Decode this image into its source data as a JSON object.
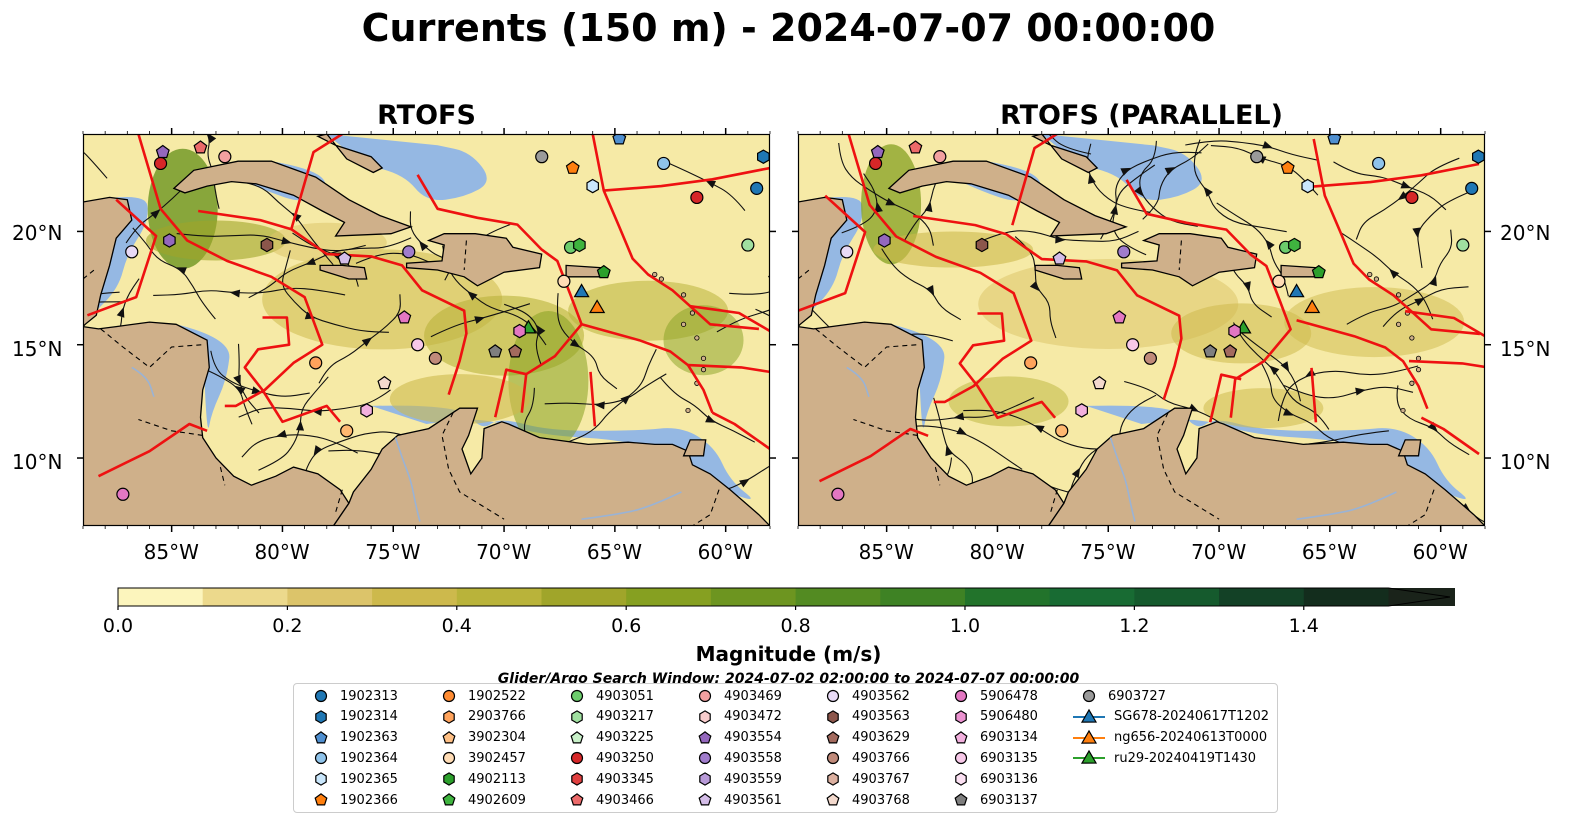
{
  "title": "Currents (150 m) - 2024-07-07 00:00:00",
  "panels": [
    {
      "title": "RTOFS"
    },
    {
      "title": "RTOFS (PARALLEL)"
    }
  ],
  "axes": {
    "lon_labels": [
      "85°W",
      "80°W",
      "75°W",
      "70°W",
      "65°W",
      "60°W"
    ],
    "lon_values": [
      -85,
      -80,
      -75,
      -70,
      -65,
      -60
    ],
    "lat_labels": [
      "20°N",
      "15°N",
      "10°N"
    ],
    "lat_values": [
      20,
      15,
      10
    ],
    "lon_range": [
      -89,
      -58
    ],
    "lat_range": [
      7,
      24.3
    ]
  },
  "colorbar": {
    "label": "Magnitude (m/s)",
    "ticks": [
      "0.0",
      "0.2",
      "0.4",
      "0.6",
      "0.8",
      "1.0",
      "1.2",
      "1.4"
    ],
    "tick_values": [
      0,
      0.2,
      0.4,
      0.6,
      0.8,
      1.0,
      1.2,
      1.4
    ],
    "colors": [
      "#fcf5bd",
      "#ecd98c",
      "#dcc46a",
      "#cdb94c",
      "#b9b33a",
      "#a0a52a",
      "#86a021",
      "#6d9520",
      "#538b22",
      "#3e8224",
      "#22732b",
      "#186b33",
      "#155a2d",
      "#134126",
      "#132d1d",
      "#1a231a"
    ],
    "extend": "max"
  },
  "search_window": "Glider/Argo Search Window: 2024-07-02 02:00:00 to 2024-07-07 00:00:00",
  "legend": [
    {
      "label": "1902313",
      "shape": "circle",
      "color": "#1f77b4"
    },
    {
      "label": "1902314",
      "shape": "hexagon",
      "color": "#1f77b4"
    },
    {
      "label": "1902363",
      "shape": "pentagon",
      "color": "#4f8fd0"
    },
    {
      "label": "1902364",
      "shape": "circle",
      "color": "#8fc3ea"
    },
    {
      "label": "1902365",
      "shape": "hexagon",
      "color": "#c9e6fb"
    },
    {
      "label": "1902366",
      "shape": "pentagon",
      "color": "#ff7f0e"
    },
    {
      "label": "1902522",
      "shape": "circle",
      "color": "#ff8c33"
    },
    {
      "label": "2903766",
      "shape": "hexagon",
      "color": "#ffa35c"
    },
    {
      "label": "3902304",
      "shape": "pentagon",
      "color": "#ffc085"
    },
    {
      "label": "3902457",
      "shape": "circle",
      "color": "#ffdcb5"
    },
    {
      "label": "4902113",
      "shape": "hexagon",
      "color": "#2ca02c"
    },
    {
      "label": "4902609",
      "shape": "pentagon",
      "color": "#3fb43f"
    },
    {
      "label": "4903051",
      "shape": "circle",
      "color": "#6ccc6c"
    },
    {
      "label": "4903217",
      "shape": "hexagon",
      "color": "#a0e0a0"
    },
    {
      "label": "4903225",
      "shape": "pentagon",
      "color": "#c8f0c8"
    },
    {
      "label": "4903250",
      "shape": "circle",
      "color": "#d62728"
    },
    {
      "label": "4903345",
      "shape": "hexagon",
      "color": "#e04040"
    },
    {
      "label": "4903466",
      "shape": "pentagon",
      "color": "#ec6a6a"
    },
    {
      "label": "4903469",
      "shape": "circle",
      "color": "#f2a0a0"
    },
    {
      "label": "4903472",
      "shape": "hexagon",
      "color": "#f8cccc"
    },
    {
      "label": "4903554",
      "shape": "pentagon",
      "color": "#9467bd"
    },
    {
      "label": "4903558",
      "shape": "circle",
      "color": "#a07ccc"
    },
    {
      "label": "4903559",
      "shape": "hexagon",
      "color": "#b89ad8"
    },
    {
      "label": "4903561",
      "shape": "pentagon",
      "color": "#d4bde8"
    },
    {
      "label": "4903562",
      "shape": "circle",
      "color": "#e8daf6"
    },
    {
      "label": "4903563",
      "shape": "hexagon",
      "color": "#8c564b"
    },
    {
      "label": "4903629",
      "shape": "pentagon",
      "color": "#a36a5e"
    },
    {
      "label": "4903766",
      "shape": "circle",
      "color": "#c08a7a"
    },
    {
      "label": "4903767",
      "shape": "hexagon",
      "color": "#dcb0a0"
    },
    {
      "label": "4903768",
      "shape": "pentagon",
      "color": "#f3d9cd"
    },
    {
      "label": "5906478",
      "shape": "circle",
      "color": "#e377c2"
    },
    {
      "label": "5906480",
      "shape": "hexagon",
      "color": "#eb92d0"
    },
    {
      "label": "6903134",
      "shape": "pentagon",
      "color": "#f2b0de"
    },
    {
      "label": "6903135",
      "shape": "circle",
      "color": "#f7c8e8"
    },
    {
      "label": "6903136",
      "shape": "hexagon",
      "color": "#fbe0f2"
    },
    {
      "label": "6903137",
      "shape": "pentagon",
      "color": "#7f7f7f"
    },
    {
      "label": "6903727",
      "shape": "circle",
      "color": "#9a9a9a"
    },
    {
      "label": "SG678-20240617T1202",
      "shape": "triangle",
      "color": "#1f77b4"
    },
    {
      "label": "ng656-20240613T0000",
      "shape": "triangle",
      "color": "#ff7f0e"
    },
    {
      "label": "ru29-20240419T1430",
      "shape": "triangle",
      "color": "#2ca02c"
    }
  ],
  "markers": [
    {
      "shape": "circle",
      "color": "#1f77b4",
      "lon": -58.6,
      "lat": 21.9
    },
    {
      "shape": "hexagon",
      "color": "#1f77b4",
      "lon": -58.3,
      "lat": 23.3
    },
    {
      "shape": "pentagon",
      "color": "#4f8fd0",
      "lon": -64.8,
      "lat": 24.1
    },
    {
      "shape": "circle",
      "color": "#8fc3ea",
      "lon": -62.8,
      "lat": 23.0
    },
    {
      "shape": "hexagon",
      "color": "#c9e6fb",
      "lon": -66.0,
      "lat": 22.0
    },
    {
      "shape": "pentagon",
      "color": "#ff7f0e",
      "lon": -66.9,
      "lat": 22.8
    },
    {
      "shape": "circle",
      "color": "#d62728",
      "lon": -85.5,
      "lat": 23.0
    },
    {
      "shape": "pentagon",
      "color": "#9467bd",
      "lon": -85.4,
      "lat": 23.5
    },
    {
      "shape": "pentagon",
      "color": "#ec6a6a",
      "lon": -83.7,
      "lat": 23.7
    },
    {
      "shape": "circle",
      "color": "#f2a0a0",
      "lon": -82.6,
      "lat": 23.3
    },
    {
      "shape": "hexagon",
      "color": "#9467bd",
      "lon": -85.1,
      "lat": 19.6
    },
    {
      "shape": "circle",
      "color": "#e8daf6",
      "lon": -86.8,
      "lat": 19.1
    },
    {
      "shape": "hexagon",
      "color": "#8c564b",
      "lon": -80.7,
      "lat": 19.4
    },
    {
      "shape": "pentagon",
      "color": "#d4bde8",
      "lon": -77.2,
      "lat": 18.8
    },
    {
      "shape": "circle",
      "color": "#a07ccc",
      "lon": -74.3,
      "lat": 19.1
    },
    {
      "shape": "circle",
      "color": "#6ccc6c",
      "lon": -67.0,
      "lat": 19.3
    },
    {
      "shape": "hexagon",
      "color": "#3fb43f",
      "lon": -66.6,
      "lat": 19.4
    },
    {
      "shape": "circle",
      "color": "#a0e0a0",
      "lon": -59.0,
      "lat": 19.4
    },
    {
      "shape": "pentagon",
      "color": "#2ca02c",
      "lon": -65.5,
      "lat": 18.2
    },
    {
      "shape": "circle",
      "color": "#ffdcb5",
      "lon": -67.3,
      "lat": 17.8
    },
    {
      "shape": "circle",
      "color": "#d62728",
      "lon": -61.3,
      "lat": 21.5
    },
    {
      "shape": "circle",
      "color": "#9a9a9a",
      "lon": -68.3,
      "lat": 23.3
    },
    {
      "shape": "triangle",
      "color": "#1f77b4",
      "lon": -66.5,
      "lat": 17.3
    },
    {
      "shape": "triangle",
      "color": "#ff7f0e",
      "lon": -65.8,
      "lat": 16.6
    },
    {
      "shape": "triangle",
      "color": "#2ca02c",
      "lon": -68.9,
      "lat": 15.7
    },
    {
      "shape": "hexagon",
      "color": "#e377c2",
      "lon": -69.3,
      "lat": 15.6
    },
    {
      "shape": "pentagon",
      "color": "#e377c2",
      "lon": -74.5,
      "lat": 16.2
    },
    {
      "shape": "circle",
      "color": "#f7c8e8",
      "lon": -73.9,
      "lat": 15.0
    },
    {
      "shape": "circle",
      "color": "#c08a7a",
      "lon": -73.1,
      "lat": 14.4
    },
    {
      "shape": "pentagon",
      "color": "#7f7f7f",
      "lon": -70.4,
      "lat": 14.7
    },
    {
      "shape": "pentagon",
      "color": "#a36a5e",
      "lon": -69.5,
      "lat": 14.7
    },
    {
      "shape": "circle",
      "color": "#ffa35c",
      "lon": -78.5,
      "lat": 14.2
    },
    {
      "shape": "pentagon",
      "color": "#f3d9cd",
      "lon": -75.4,
      "lat": 13.3
    },
    {
      "shape": "hexagon",
      "color": "#f2b0de",
      "lon": -76.2,
      "lat": 12.1
    },
    {
      "shape": "circle",
      "color": "#ffb870",
      "lon": -77.1,
      "lat": 11.2
    },
    {
      "shape": "circle",
      "color": "#e377c2",
      "lon": -87.2,
      "lat": 8.4
    }
  ]
}
